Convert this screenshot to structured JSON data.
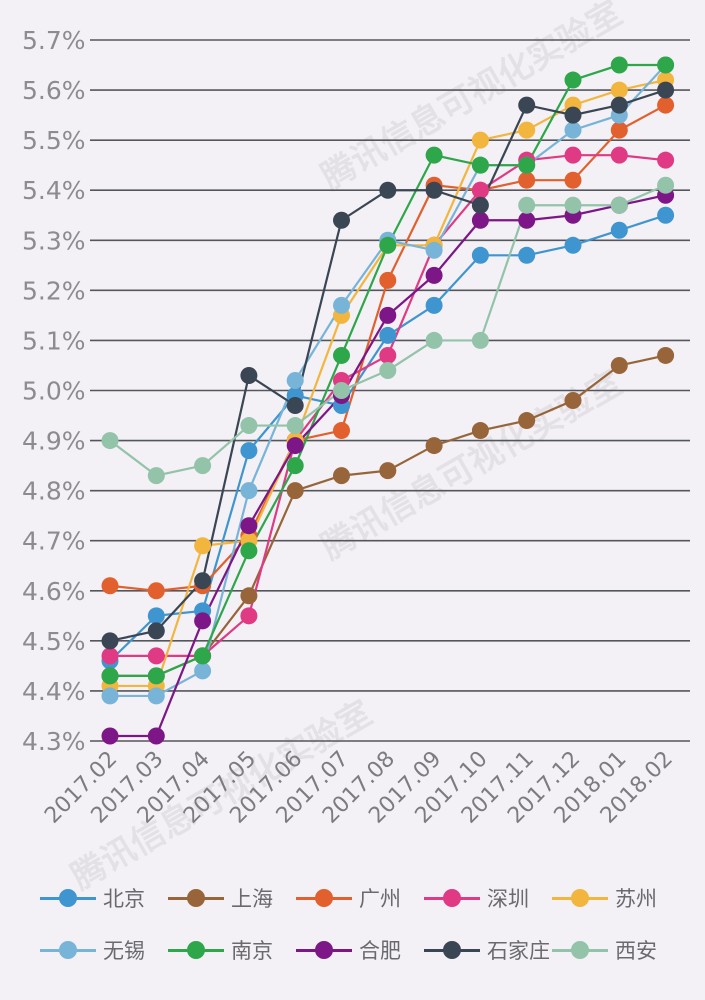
{
  "chart_data": {
    "type": "line",
    "title": "",
    "xlabel": "",
    "ylabel": "",
    "x": [
      "2017.02",
      "2017.03",
      "2017.04",
      "2017.05",
      "2017.06",
      "2017.07",
      "2017.08",
      "2017.09",
      "2017.10",
      "2017.11",
      "2017.12",
      "2018.01",
      "2018.02"
    ],
    "y_ticks": [
      "4.3%",
      "4.4%",
      "4.5%",
      "4.6%",
      "4.7%",
      "4.8%",
      "4.9%",
      "5.0%",
      "5.1%",
      "5.2%",
      "5.3%",
      "5.4%",
      "5.5%",
      "5.6%",
      "5.7%"
    ],
    "ylim": [
      4.3,
      5.7
    ],
    "y_unit": "%",
    "grid": true,
    "legend_position": "bottom",
    "watermark": "腾讯信息可视化实验室",
    "series": [
      {
        "name": "北京",
        "color": "#3f95cf",
        "values": [
          4.46,
          4.55,
          4.56,
          4.88,
          4.99,
          4.97,
          5.11,
          5.17,
          5.27,
          5.27,
          5.29,
          5.32,
          5.35
        ]
      },
      {
        "name": "上海",
        "color": "#98653a",
        "values": [
          4.43,
          4.43,
          4.47,
          4.59,
          4.8,
          4.83,
          4.84,
          4.89,
          4.92,
          4.94,
          4.98,
          5.05,
          5.07
        ]
      },
      {
        "name": "广州",
        "color": "#e2602d",
        "values": [
          4.61,
          4.6,
          4.61,
          4.71,
          4.9,
          4.92,
          5.22,
          5.41,
          5.4,
          5.42,
          5.42,
          5.52,
          5.57
        ]
      },
      {
        "name": "深圳",
        "color": "#e03a84",
        "values": [
          4.47,
          4.47,
          4.47,
          4.55,
          4.9,
          5.02,
          5.07,
          5.29,
          5.4,
          5.46,
          5.47,
          5.47,
          5.46
        ]
      },
      {
        "name": "苏州",
        "color": "#f2b63e",
        "values": [
          4.41,
          4.41,
          4.69,
          4.7,
          4.9,
          5.15,
          5.29,
          5.29,
          5.5,
          5.52,
          5.57,
          5.6,
          5.62
        ]
      },
      {
        "name": "无锡",
        "color": "#78b4d8",
        "values": [
          4.39,
          4.39,
          4.44,
          4.8,
          5.02,
          5.17,
          5.3,
          5.28,
          5.45,
          5.45,
          5.52,
          5.55,
          5.65
        ]
      },
      {
        "name": "南京",
        "color": "#2ea64a",
        "values": [
          4.43,
          4.43,
          4.47,
          4.68,
          4.85,
          5.07,
          5.29,
          5.47,
          5.45,
          5.45,
          5.62,
          5.65,
          5.65
        ]
      },
      {
        "name": "合肥",
        "color": "#7d1686",
        "values": [
          4.31,
          4.31,
          4.54,
          4.73,
          4.89,
          4.99,
          5.15,
          5.23,
          5.34,
          5.34,
          5.35,
          5.37,
          5.39
        ]
      },
      {
        "name": "石家庄",
        "color": "#3a4654",
        "values": [
          4.5,
          4.52,
          4.62,
          5.03,
          4.97,
          5.34,
          5.4,
          5.4,
          5.37,
          5.57,
          5.55,
          5.57,
          5.6
        ]
      },
      {
        "name": "西安",
        "color": "#93c3a9",
        "values": [
          4.9,
          4.83,
          4.85,
          4.93,
          4.93,
          5.0,
          5.04,
          5.1,
          5.1,
          5.37,
          5.37,
          5.37,
          5.41
        ]
      }
    ]
  }
}
